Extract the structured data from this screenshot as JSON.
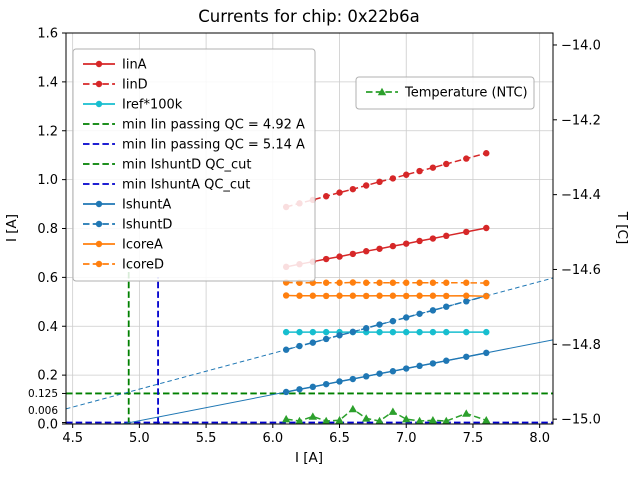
{
  "window": {
    "title": "Currents for chip: 0x22b6a"
  },
  "chart_data": {
    "type": "line",
    "title": "Currents for chip: 0x22b6a",
    "xlabel": "I [A]",
    "ylabel_left": "I [A]",
    "ylabel_right": "T [C]",
    "xlim": [
      4.45,
      8.1
    ],
    "ylim_left": [
      0.0,
      1.6
    ],
    "ylim_right": [
      -15.013,
      -13.968
    ],
    "grid": true,
    "legend_positions": {
      "main": "upper left",
      "temperature": "upper right"
    },
    "xticks": [
      {
        "v": 4.5,
        "label": "4.5"
      },
      {
        "v": 5.0,
        "label": "5.0"
      },
      {
        "v": 5.5,
        "label": "5.5"
      },
      {
        "v": 6.0,
        "label": "6.0"
      },
      {
        "v": 6.5,
        "label": "6.5"
      },
      {
        "v": 7.0,
        "label": "7.0"
      },
      {
        "v": 7.5,
        "label": "7.5"
      },
      {
        "v": 8.0,
        "label": "8.0"
      }
    ],
    "yticks_left": [
      {
        "v": 0.0,
        "label": "0.0"
      },
      {
        "v": 0.2,
        "label": "0.2"
      },
      {
        "v": 0.4,
        "label": "0.4"
      },
      {
        "v": 0.6,
        "label": "0.6"
      },
      {
        "v": 0.8,
        "label": "0.8"
      },
      {
        "v": 1.0,
        "label": "1.0"
      },
      {
        "v": 1.2,
        "label": "1.2"
      },
      {
        "v": 1.4,
        "label": "1.4"
      },
      {
        "v": 1.6,
        "label": "1.6"
      }
    ],
    "special_yticks": [
      {
        "v": 0.125,
        "label": "0.125",
        "label_dy": 0
      },
      {
        "v": 0.006,
        "label": "0.006",
        "label_dy": -12
      }
    ],
    "yticks_right": [
      {
        "v": -14.0,
        "label": "−14.0"
      },
      {
        "v": -14.2,
        "label": "−14.2"
      },
      {
        "v": -14.4,
        "label": "−14.4"
      },
      {
        "v": -14.6,
        "label": "−14.6"
      },
      {
        "v": -14.8,
        "label": "−14.8"
      },
      {
        "v": -15.0,
        "label": "−15.0"
      }
    ],
    "x": [
      6.1,
      6.2,
      6.3,
      6.4,
      6.5,
      6.6,
      6.7,
      6.8,
      6.9,
      7.0,
      7.1,
      7.2,
      7.3,
      7.45,
      7.6
    ],
    "series": [
      {
        "name": "IinA",
        "axis": "left",
        "color": "#d62728",
        "dash": "solid",
        "marker": "circle",
        "values": [
          0.643,
          0.654,
          0.664,
          0.675,
          0.685,
          0.696,
          0.707,
          0.717,
          0.728,
          0.738,
          0.749,
          0.759,
          0.77,
          0.786,
          0.802
        ]
      },
      {
        "name": "IinD",
        "axis": "left",
        "color": "#d62728",
        "dash": "dashed",
        "marker": "circle",
        "values": [
          0.888,
          0.903,
          0.917,
          0.932,
          0.947,
          0.961,
          0.976,
          0.991,
          1.005,
          1.02,
          1.035,
          1.049,
          1.064,
          1.086,
          1.108
        ]
      },
      {
        "name": "Iref*100k",
        "axis": "left",
        "color": "#17becf",
        "dash": "solid",
        "marker": "circle",
        "values": [
          0.376,
          0.376,
          0.376,
          0.376,
          0.376,
          0.376,
          0.376,
          0.376,
          0.376,
          0.376,
          0.376,
          0.376,
          0.376,
          0.376,
          0.376
        ]
      },
      {
        "name": "IshuntA",
        "axis": "left",
        "color": "#1f77b4",
        "dash": "solid",
        "marker": "circle",
        "values": [
          0.131,
          0.142,
          0.152,
          0.163,
          0.174,
          0.184,
          0.195,
          0.206,
          0.216,
          0.227,
          0.238,
          0.248,
          0.259,
          0.275,
          0.291
        ]
      },
      {
        "name": "IshuntD",
        "axis": "left",
        "color": "#1f77b4",
        "dash": "dashed",
        "marker": "circle",
        "values": [
          0.304,
          0.319,
          0.333,
          0.348,
          0.363,
          0.377,
          0.392,
          0.407,
          0.421,
          0.436,
          0.451,
          0.465,
          0.48,
          0.502,
          0.524
        ]
      },
      {
        "name": "IcoreA",
        "axis": "left",
        "color": "#ff7f0e",
        "dash": "solid",
        "marker": "circle",
        "values": [
          0.526,
          0.525,
          0.525,
          0.524,
          0.525,
          0.525,
          0.524,
          0.525,
          0.525,
          0.524,
          0.525,
          0.525,
          0.524,
          0.525,
          0.523
        ]
      },
      {
        "name": "IcoreD",
        "axis": "left",
        "color": "#ff7f0e",
        "dash": "dashed",
        "marker": "circle",
        "values": [
          0.579,
          0.578,
          0.578,
          0.578,
          0.578,
          0.579,
          0.578,
          0.578,
          0.578,
          0.578,
          0.578,
          0.578,
          0.578,
          0.578,
          0.577
        ]
      },
      {
        "name": "Temperature (NTC)",
        "axis": "right",
        "color": "#2ca02c",
        "dash": "dashed",
        "marker": "triangle",
        "values": [
          -15.0,
          -15.005,
          -14.993,
          -15.005,
          -15.003,
          -14.973,
          -14.998,
          -15.005,
          -14.98,
          -15.0,
          -15.005,
          -15.003,
          -15.005,
          -14.985,
          -15.003
        ]
      }
    ],
    "fit_lines": [
      {
        "name": "IshuntA_fit",
        "color": "#1f77b4",
        "dash": "solid",
        "slope": 0.1067,
        "intercept": -0.5199
      },
      {
        "name": "IshuntD_fit",
        "color": "#1f77b4",
        "dash": "dashed",
        "slope": 0.1467,
        "intercept": -0.5909
      }
    ],
    "vlines": [
      {
        "label": "min Iin passing QC = 4.92 A",
        "x": 4.92,
        "ymax": 0.655,
        "color": "#008000",
        "dash": "dashed"
      },
      {
        "label": "min Iin passing QC = 5.14 A",
        "x": 5.14,
        "ymax": 0.6,
        "color": "#0000cd",
        "dash": "dashed"
      }
    ],
    "hlines": [
      {
        "label": "min IshuntD QC_cut",
        "y": 0.125,
        "color": "#008000",
        "dash": "dashed"
      },
      {
        "label": "min IshuntA QC_cut",
        "y": 0.006,
        "color": "#0000cd",
        "dash": "dashed"
      }
    ],
    "legend_main": {
      "entries": [
        {
          "label": "IinA",
          "color": "#d62728",
          "dash": "solid",
          "marker": "circle"
        },
        {
          "label": "IinD",
          "color": "#d62728",
          "dash": "dashed",
          "marker": "circle"
        },
        {
          "label": "Iref*100k",
          "color": "#17becf",
          "dash": "solid",
          "marker": "circle"
        },
        {
          "label": "min Iin passing QC = 4.92 A",
          "color": "#008000",
          "dash": "dashed",
          "marker": "none"
        },
        {
          "label": "min Iin passing QC = 5.14 A",
          "color": "#0000cd",
          "dash": "dashed",
          "marker": "none"
        },
        {
          "label": "min IshuntD QC_cut",
          "color": "#008000",
          "dash": "dashed",
          "marker": "none"
        },
        {
          "label": "min IshuntA QC_cut",
          "color": "#0000cd",
          "dash": "dashed",
          "marker": "none"
        },
        {
          "label": "IshuntA",
          "color": "#1f77b4",
          "dash": "solid",
          "marker": "circle"
        },
        {
          "label": "IshuntD",
          "color": "#1f77b4",
          "dash": "dashed",
          "marker": "circle"
        },
        {
          "label": "IcoreA",
          "color": "#ff7f0e",
          "dash": "solid",
          "marker": "circle"
        },
        {
          "label": "IcoreD",
          "color": "#ff7f0e",
          "dash": "dashed",
          "marker": "circle"
        }
      ]
    },
    "legend_temp": {
      "entries": [
        {
          "label": "Temperature (NTC)",
          "color": "#2ca02c",
          "dash": "dashed",
          "marker": "triangle"
        }
      ]
    }
  }
}
